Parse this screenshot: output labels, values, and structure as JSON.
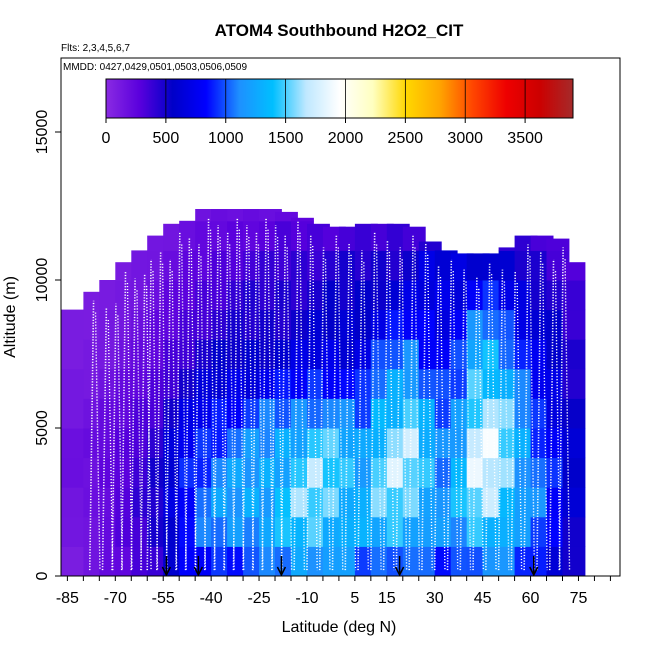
{
  "chart_data": {
    "type": "heatmap",
    "title": "ATOM4 Southbound H2O2_CIT",
    "flights_label": "Flts: 2,3,4,5,6,7",
    "dates_label": "MMDD: 0427,0429,0501,0503,0506,0509",
    "xlabel": "Latitude (deg N)",
    "ylabel": "Altitude (m)",
    "xlim": [
      -87,
      88
    ],
    "ylim": [
      0,
      17500
    ],
    "x_ticks": [
      -85,
      -70,
      -55,
      -40,
      -25,
      -10,
      5,
      15,
      30,
      45,
      60,
      75
    ],
    "y_ticks": [
      0,
      5000,
      10000,
      15000
    ],
    "colorbar": {
      "range": [
        0,
        3900
      ],
      "ticks": [
        0,
        500,
        1000,
        1500,
        2000,
        2500,
        3000,
        3500
      ],
      "stops": [
        "#8a2be2",
        "#5a00dd",
        "#0000c8",
        "#0000ff",
        "#1e90ff",
        "#00bfff",
        "#bfe8ff",
        "#ffffff",
        "#ffffc0",
        "#ffd700",
        "#ffa500",
        "#ff4500",
        "#ee0000",
        "#cc0000",
        "#a52a2a"
      ]
    },
    "profiles_lat": [
      -78,
      -74,
      -71,
      -68,
      -65,
      -62,
      -60,
      -57,
      -54,
      -51,
      -48,
      -45,
      -42,
      -39,
      -36,
      -33,
      -30,
      -27,
      -24,
      -21,
      -18,
      -14,
      -10,
      -6,
      -2,
      2,
      6,
      10,
      14,
      18,
      22,
      26,
      30,
      34,
      38,
      42,
      46,
      50,
      54,
      58,
      62,
      66,
      69
    ],
    "arrows_lat": [
      -54,
      -44,
      -18,
      19,
      61
    ],
    "curtain": {
      "lat": [
        -87,
        -80,
        -75,
        -70,
        -65,
        -60,
        -55,
        -50,
        -45,
        -40,
        -35,
        -30,
        -25,
        -20,
        -15,
        -10,
        -5,
        0,
        5,
        10,
        15,
        20,
        25,
        30,
        35,
        40,
        45,
        50,
        55,
        60,
        65,
        70
      ],
      "top_alt": [
        9000,
        9600,
        10000,
        10600,
        11000,
        11500,
        11900,
        12000,
        12400,
        12400,
        12400,
        12400,
        12400,
        12300,
        12100,
        11900,
        11800,
        11800,
        11900,
        11900,
        11900,
        11800,
        11300,
        11000,
        10900,
        10900,
        10900,
        11100,
        11500,
        11500,
        11400,
        10600
      ],
      "alt_levels": [
        0,
        1000,
        2000,
        3000,
        4000,
        5000,
        6000,
        7000,
        8000,
        9000,
        10000,
        11000,
        12000
      ],
      "values": [
        [
          100,
          130,
          150,
          170,
          180,
          140,
          120,
          100,
          90,
          80,
          70,
          60,
          60
        ],
        [
          150,
          170,
          170,
          180,
          190,
          160,
          130,
          110,
          100,
          90,
          80,
          70,
          60
        ],
        [
          200,
          220,
          230,
          240,
          230,
          200,
          160,
          130,
          120,
          110,
          100,
          80,
          70
        ],
        [
          250,
          280,
          300,
          300,
          280,
          240,
          200,
          160,
          140,
          120,
          110,
          90,
          80
        ],
        [
          320,
          360,
          380,
          370,
          350,
          300,
          250,
          200,
          180,
          150,
          130,
          110,
          90
        ],
        [
          420,
          470,
          480,
          460,
          420,
          360,
          300,
          250,
          220,
          180,
          160,
          130,
          110
        ],
        [
          600,
          650,
          660,
          640,
          600,
          500,
          400,
          320,
          260,
          230,
          200,
          160,
          120
        ],
        [
          750,
          850,
          900,
          880,
          800,
          650,
          500,
          400,
          320,
          280,
          230,
          190,
          140
        ],
        [
          850,
          1000,
          1050,
          1000,
          900,
          780,
          600,
          480,
          380,
          320,
          260,
          210,
          160
        ],
        [
          900,
          1100,
          1150,
          1100,
          980,
          850,
          650,
          520,
          420,
          360,
          300,
          240,
          180
        ],
        [
          950,
          1150,
          1200,
          1150,
          1050,
          900,
          700,
          550,
          450,
          400,
          330,
          260,
          190
        ],
        [
          1000,
          1200,
          1250,
          1200,
          1100,
          950,
          720,
          560,
          470,
          420,
          350,
          270,
          200
        ],
        [
          1000,
          1250,
          1300,
          1250,
          1150,
          1000,
          750,
          580,
          480,
          430,
          360,
          280,
          210
        ],
        [
          1100,
          1300,
          1400,
          1350,
          1250,
          1050,
          800,
          600,
          500,
          450,
          380,
          300,
          220
        ],
        [
          1200,
          1400,
          1500,
          1450,
          1350,
          1100,
          850,
          650,
          520,
          460,
          400,
          310,
          230
        ],
        [
          1250,
          1450,
          1550,
          1550,
          1450,
          1150,
          900,
          700,
          560,
          480,
          420,
          320,
          240
        ],
        [
          1200,
          1400,
          1500,
          1500,
          1400,
          1100,
          900,
          700,
          580,
          500,
          440,
          330,
          250
        ],
        [
          1100,
          1300,
          1400,
          1400,
          1300,
          1050,
          850,
          680,
          600,
          520,
          450,
          340,
          260
        ],
        [
          1000,
          1200,
          1300,
          1300,
          1200,
          1000,
          850,
          700,
          620,
          540,
          460,
          350,
          270
        ],
        [
          1000,
          1300,
          1450,
          1500,
          1450,
          1300,
          1100,
          900,
          700,
          580,
          480,
          360,
          280
        ],
        [
          1100,
          1400,
          1550,
          1650,
          1600,
          1450,
          1250,
          1050,
          800,
          620,
          500,
          380,
          290
        ],
        [
          1050,
          1350,
          1500,
          1600,
          1600,
          1500,
          1300,
          1100,
          850,
          650,
          520,
          390,
          300
        ],
        [
          950,
          1200,
          1350,
          1400,
          1350,
          1200,
          1000,
          900,
          800,
          700,
          650,
          450,
          320
        ],
        [
          900,
          1100,
          1150,
          1150,
          1100,
          1000,
          900,
          800,
          750,
          700,
          650,
          480,
          330
        ],
        [
          950,
          1150,
          1300,
          1350,
          1300,
          1150,
          1000,
          900,
          800,
          720,
          660,
          470,
          330
        ],
        [
          1100,
          1400,
          1600,
          1700,
          1700,
          1600,
          1450,
          1300,
          1050,
          800,
          650,
          440,
          320
        ],
        [
          1150,
          1450,
          1650,
          1750,
          1750,
          1650,
          1500,
          1350,
          1100,
          850,
          600,
          420,
          300
        ],
        [
          1050,
          1300,
          1500,
          1550,
          1550,
          1450,
          1300,
          1150,
          950,
          750,
          550,
          400,
          290
        ],
        [
          950,
          1100,
          1200,
          1250,
          1250,
          1150,
          1000,
          900,
          780,
          650,
          500,
          380,
          280
        ],
        [
          850,
          1000,
          1050,
          1050,
          1000,
          900,
          800,
          700,
          620,
          550,
          450,
          350,
          260
        ],
        [
          700,
          800,
          850,
          850,
          800,
          750,
          680,
          600,
          520,
          450,
          380,
          300,
          230
        ],
        [
          500,
          560,
          600,
          600,
          570,
          540,
          500,
          450,
          400,
          350,
          300,
          250,
          200
        ]
      ]
    }
  }
}
